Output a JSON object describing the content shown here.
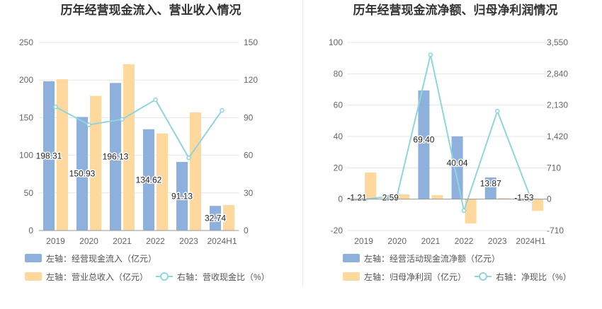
{
  "charts": [
    {
      "title": "历年经营现金流入、营业收入情况",
      "categories": [
        "2019",
        "2020",
        "2021",
        "2022",
        "2023",
        "2024H1"
      ],
      "left_ticks": [
        "0",
        "50",
        "100",
        "150",
        "200",
        "250"
      ],
      "right_ticks": [
        "0",
        "30",
        "60",
        "90",
        "120",
        "150"
      ],
      "legend": {
        "series_a": "左轴：经营现金流入（亿元）",
        "series_b": "左轴：营业总收入（亿元）",
        "series_c": "右轴：营收现金比（%）"
      },
      "colors": {
        "a": "#8eb0dd",
        "b": "#fed89c",
        "c": "#8fd6dc"
      }
    },
    {
      "title": "历年经营现金流净额、归母净利润情况",
      "categories": [
        "2019",
        "2020",
        "2021",
        "2022",
        "2023",
        "2024H1"
      ],
      "left_ticks": [
        "-20",
        "0",
        "20",
        "40",
        "60",
        "80",
        "100"
      ],
      "right_ticks": [
        "-710",
        "0",
        "710",
        "1,420",
        "2,130",
        "2,840",
        "3,550"
      ],
      "legend": {
        "series_a": "左轴：经营活动现金流净额（亿元）",
        "series_b": "左轴：归母净利润（亿元）",
        "series_c": "右轴：净现比（%）"
      },
      "colors": {
        "a": "#8eb0dd",
        "b": "#fed89c",
        "c": "#8fd6dc"
      }
    }
  ],
  "chart_data": [
    {
      "type": "bar",
      "title": "历年经营现金流入、营业收入情况",
      "categories": [
        "2019",
        "2020",
        "2021",
        "2022",
        "2023",
        "2024H1"
      ],
      "ylim_left": [
        0,
        250
      ],
      "ylim_right": [
        0,
        150
      ],
      "series": [
        {
          "name": "左轴：经营现金流入（亿元）",
          "axis": "left",
          "type": "bar",
          "values": [
            198.31,
            150.93,
            196.13,
            134.62,
            91.13,
            32.74
          ],
          "labels": [
            "198.31",
            "150.93",
            "196.13",
            "134.62",
            "91.13",
            "32.74"
          ]
        },
        {
          "name": "左轴：营业总收入（亿元）",
          "axis": "left",
          "type": "bar",
          "values": [
            201,
            179,
            221,
            129,
            157,
            34
          ]
        },
        {
          "name": "右轴：营收现金比（%）",
          "axis": "right",
          "type": "line",
          "values": [
            98.6,
            84.3,
            88.7,
            104.3,
            58.0,
            95.8
          ]
        }
      ]
    },
    {
      "type": "bar",
      "title": "历年经营现金流净额、归母净利润情况",
      "categories": [
        "2019",
        "2020",
        "2021",
        "2022",
        "2023",
        "2024H1"
      ],
      "ylim_left": [
        -20,
        100
      ],
      "ylim_right": [
        -710,
        3550
      ],
      "series": [
        {
          "name": "左轴：经营活动现金流净额（亿元）",
          "axis": "left",
          "type": "bar",
          "values": [
            -1.21,
            2.59,
            69.4,
            40.04,
            13.87,
            -1.53
          ],
          "labels": [
            "-1.21",
            "2.59",
            "69.40",
            "40.04",
            "13.87",
            "-1.53"
          ]
        },
        {
          "name": "左轴：归母净利润（亿元）",
          "axis": "left",
          "type": "bar",
          "values": [
            17,
            3,
            2.5,
            -15.5,
            0.7,
            -7.5
          ]
        },
        {
          "name": "右轴：净现比（%）",
          "axis": "right",
          "type": "line",
          "values": [
            -7,
            86,
            3270,
            -260,
            1995,
            20
          ]
        }
      ]
    }
  ]
}
